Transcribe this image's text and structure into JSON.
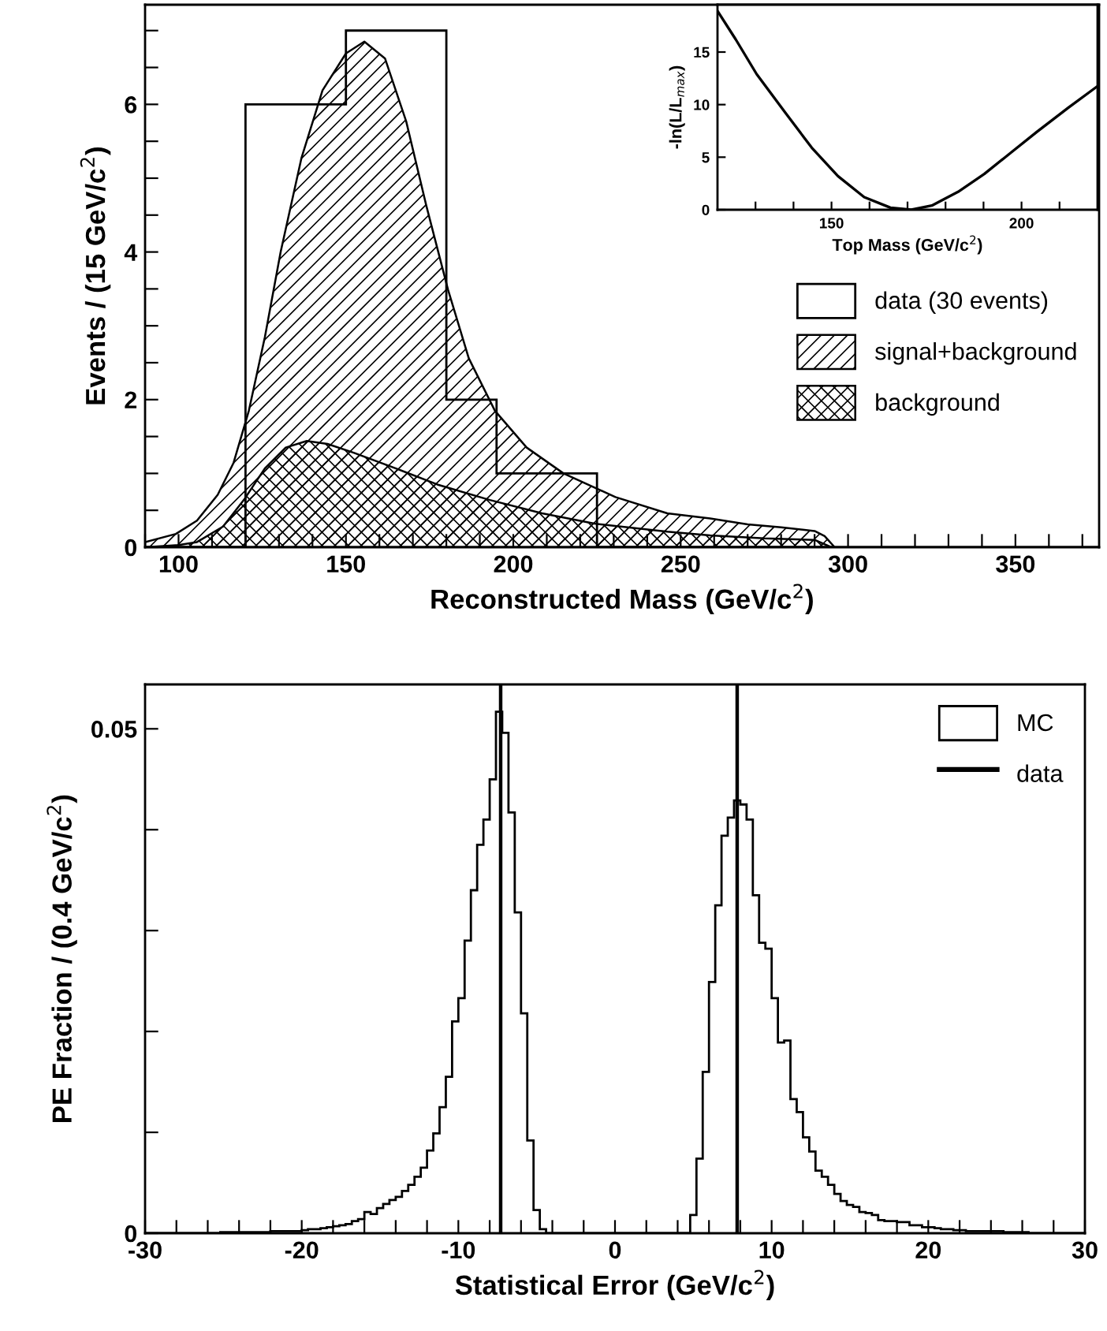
{
  "chart_data": [
    {
      "type": "histogram",
      "xlabel": "Reconstructed Mass (GeV/c$^{2}$)",
      "ylabel": "Events / (15 GeV/c$^{2}$)",
      "xlim": [
        90,
        375
      ],
      "ylim": [
        0,
        7.35
      ],
      "xticks": [
        {
          "value": 90,
          "label": null
        },
        100,
        {
          "value": 110,
          "label": null
        },
        {
          "value": 120,
          "label": null
        },
        {
          "value": 130,
          "label": null
        },
        {
          "value": 140,
          "label": null
        },
        150,
        {
          "value": 160,
          "label": null
        },
        {
          "value": 170,
          "label": null
        },
        {
          "value": 180,
          "label": null
        },
        {
          "value": 190,
          "label": null
        },
        200,
        {
          "value": 210,
          "label": null
        },
        {
          "value": 220,
          "label": null
        },
        {
          "value": 230,
          "label": null
        },
        {
          "value": 240,
          "label": null
        },
        250,
        {
          "value": 260,
          "label": null
        },
        {
          "value": 270,
          "label": null
        },
        {
          "value": 280,
          "label": null
        },
        {
          "value": 290,
          "label": null
        },
        300,
        {
          "value": 310,
          "label": null
        },
        {
          "value": 320,
          "label": null
        },
        {
          "value": 330,
          "label": null
        },
        {
          "value": 340,
          "label": null
        },
        350,
        {
          "value": 360,
          "label": null
        },
        {
          "value": 370,
          "label": null
        }
      ],
      "yticks": [
        0,
        {
          "value": 0.5,
          "label": null
        },
        {
          "value": 1,
          "label": null
        },
        {
          "value": 1.5,
          "label": null
        },
        2,
        {
          "value": 2.5,
          "label": null
        },
        {
          "value": 3,
          "label": null
        },
        {
          "value": 3.5,
          "label": null
        },
        4,
        {
          "value": 4.5,
          "label": null
        },
        {
          "value": 5,
          "label": null
        },
        {
          "value": 5.5,
          "label": null
        },
        6,
        {
          "value": 6.5,
          "label": null
        },
        {
          "value": 7,
          "label": null
        }
      ],
      "legend": "right",
      "grid": false,
      "series": [
        {
          "name": "data (30 events)",
          "type": "histogram",
          "color": "#000000",
          "bins": [
            90,
            105,
            120,
            135,
            150,
            165,
            180,
            195,
            210,
            225,
            240,
            255,
            270,
            285,
            300,
            315,
            330,
            345,
            360,
            375
          ],
          "values": [
            0,
            0,
            6,
            6,
            7,
            7,
            2,
            1,
            1,
            0,
            0,
            0,
            0,
            0,
            0,
            0,
            0,
            0,
            0
          ]
        },
        {
          "name": "signal+background",
          "type": "area",
          "color": "#000000",
          "x": [
            90,
            99.2,
            105.5,
            111.7,
            116.4,
            121,
            125.8,
            130.5,
            136.7,
            143,
            150,
            155.5,
            161.7,
            168,
            174,
            180.5,
            186.7,
            194.5,
            204,
            215,
            230.5,
            246,
            258.8,
            270,
            280,
            290,
            293,
            296
          ],
          "values": [
            0.07,
            0.18,
            0.36,
            0.71,
            1.14,
            1.85,
            2.85,
            4.0,
            5.27,
            6.19,
            6.69,
            6.85,
            6.62,
            5.77,
            4.63,
            3.49,
            2.56,
            1.85,
            1.35,
            1.0,
            0.68,
            0.46,
            0.39,
            0.31,
            0.27,
            0.22,
            0.15,
            0
          ]
        },
        {
          "name": "background",
          "type": "area",
          "color": "#000000",
          "x": [
            90,
            100,
            105.5,
            113.3,
            119.5,
            125.8,
            132,
            138.3,
            144.5,
            152.3,
            164.8,
            177.3,
            193,
            208.6,
            224.2,
            246,
            258.8,
            275,
            290,
            295
          ],
          "values": [
            0,
            0.03,
            0.07,
            0.28,
            0.64,
            1.07,
            1.35,
            1.44,
            1.4,
            1.28,
            1.07,
            0.85,
            0.64,
            0.46,
            0.32,
            0.21,
            0.16,
            0.12,
            0.1,
            0
          ]
        }
      ]
    },
    {
      "type": "line",
      "xlabel": "Top Mass (GeV/c$^{2}$)",
      "ylabel": "-ln(L/L$_{max}$)",
      "xlim": [
        120,
        220
      ],
      "ylim": [
        0,
        19.5
      ],
      "xticks": [
        {
          "value": 130,
          "label": null
        },
        {
          "value": 140,
          "label": null
        },
        150,
        {
          "value": 160,
          "label": null
        },
        {
          "value": 170,
          "label": null
        },
        {
          "value": 180,
          "label": null
        },
        {
          "value": 190,
          "label": null
        },
        200,
        {
          "value": 210,
          "label": null
        }
      ],
      "yticks": [
        0,
        5,
        10,
        15
      ],
      "grid": false,
      "series": [
        {
          "color": "#000000",
          "x": [
            120,
            124.8,
            130.3,
            137.9,
            144.8,
            151.7,
            158.6,
            165.5,
            171,
            176.4,
            183.3,
            190.2,
            197.1,
            204,
            212.3,
            219.8
          ],
          "values": [
            18.9,
            16.2,
            12.9,
            9.2,
            5.9,
            3.2,
            1.2,
            0.2,
            0,
            0.4,
            1.7,
            3.4,
            5.4,
            7.4,
            9.7,
            11.7
          ]
        }
      ]
    },
    {
      "type": "histogram",
      "xlabel": "Statistical Error (GeV/c$^{2}$)",
      "ylabel": "PE Fraction / (0.4 GeV/c$^{2}$)",
      "xlim": [
        -30,
        30
      ],
      "ylim": [
        0,
        0.0544
      ],
      "xticks": [
        -30,
        {
          "value": -28,
          "label": null
        },
        {
          "value": -26,
          "label": null
        },
        {
          "value": -24,
          "label": null
        },
        {
          "value": -22,
          "label": null
        },
        -20,
        {
          "value": -18,
          "label": null
        },
        {
          "value": -16,
          "label": null
        },
        {
          "value": -14,
          "label": null
        },
        {
          "value": -12,
          "label": null
        },
        -10,
        {
          "value": -8,
          "label": null
        },
        {
          "value": -6,
          "label": null
        },
        {
          "value": -4,
          "label": null
        },
        {
          "value": -2,
          "label": null
        },
        0,
        {
          "value": 2,
          "label": null
        },
        {
          "value": 4,
          "label": null
        },
        {
          "value": 6,
          "label": null
        },
        {
          "value": 8,
          "label": null
        },
        10,
        {
          "value": 12,
          "label": null
        },
        {
          "value": 14,
          "label": null
        },
        {
          "value": 16,
          "label": null
        },
        {
          "value": 18,
          "label": null
        },
        20,
        {
          "value": 22,
          "label": null
        },
        {
          "value": 24,
          "label": null
        },
        {
          "value": 26,
          "label": null
        },
        {
          "value": 28,
          "label": null
        },
        30
      ],
      "yticks": [
        0,
        {
          "value": 0.01,
          "label": null
        },
        {
          "value": 0.02,
          "label": null
        },
        {
          "value": 0.03,
          "label": null
        },
        {
          "value": 0.04,
          "label": null
        },
        0.05
      ],
      "legend": "top right",
      "grid": false,
      "ref_lines": [
        {
          "axis": "x",
          "value": -7.3,
          "color": "#000000"
        },
        {
          "axis": "x",
          "value": 7.8,
          "color": "#000000"
        }
      ],
      "annotations": [
        "data"
      ],
      "bins": [
        -30,
        -29.6,
        -29.2,
        -28.8,
        -28.4,
        -28,
        -27.6,
        -27.2,
        -26.8,
        -26.4,
        -26,
        -25.6,
        -25.2,
        -24.8,
        -24.4,
        -24,
        -23.6,
        -23.2,
        -22.8,
        -22.4,
        -22,
        -21.6,
        -21.2,
        -20.8,
        -20.4,
        -20,
        -19.6,
        -19.2,
        -18.8,
        -18.4,
        -18,
        -17.6,
        -17.2,
        -16.8,
        -16.4,
        -16,
        -15.6,
        -15.2,
        -14.8,
        -14.4,
        -14,
        -13.6,
        -13.2,
        -12.8,
        -12.4,
        -12,
        -11.6,
        -11.2,
        -10.8,
        -10.4,
        -10,
        -9.6,
        -9.2,
        -8.8,
        -8.4,
        -8,
        -7.6,
        -7.2,
        -6.8,
        -6.4,
        -6,
        -5.6,
        -5.2,
        -4.8,
        -4.4,
        -4,
        -3.6,
        -3.2,
        -2.8,
        -2.4,
        -2,
        -1.6,
        -1.2,
        -0.8,
        -0.4,
        0,
        0.4,
        0.8,
        1.2,
        1.6,
        2,
        2.4,
        2.8,
        3.2,
        3.6,
        4,
        4.4,
        4.8,
        5.2,
        5.6,
        6,
        6.4,
        6.8,
        7.2,
        7.6,
        8,
        8.4,
        8.8,
        9.2,
        9.6,
        10,
        10.4,
        10.8,
        11.2,
        11.6,
        12,
        12.4,
        12.8,
        13.2,
        13.6,
        14,
        14.4,
        14.8,
        15.2,
        15.6,
        16,
        16.4,
        16.8,
        17.2,
        17.6,
        18,
        18.4,
        18.8,
        19.2,
        19.6,
        20,
        20.4,
        20.8,
        21.2,
        21.6,
        22,
        22.4,
        22.8,
        23.2,
        23.6,
        24,
        24.4,
        24.8,
        25.2,
        25.6,
        26,
        26.4,
        26.8,
        27.2,
        27.6,
        28,
        28.4,
        28.8,
        29.2,
        29.6,
        30
      ],
      "series": [
        {
          "name": "MC",
          "type": "histogram",
          "color": "#000000",
          "values": [
            0,
            0,
            0,
            0,
            0,
            0,
            0,
            0,
            0,
            0,
            0,
            0,
            0.0001,
            0.0001,
            0.0001,
            0.0001,
            0.0001,
            0.0001,
            0.0001,
            0.0001,
            0.0002,
            0.0002,
            0.0002,
            0.0002,
            0.0002,
            0.0003,
            0.0004,
            0.0004,
            0.0005,
            0.0006,
            0.0007,
            0.0008,
            0.0009,
            0.0012,
            0.0014,
            0.0021,
            0.0019,
            0.0025,
            0.0029,
            0.0033,
            0.0036,
            0.0042,
            0.0048,
            0.0056,
            0.0065,
            0.0082,
            0.0099,
            0.0125,
            0.0155,
            0.021,
            0.0233,
            0.029,
            0.034,
            0.0385,
            0.041,
            0.045,
            0.0517,
            0.0496,
            0.0417,
            0.0318,
            0.0218,
            0.0092,
            0.0023,
            0.0004,
            0,
            0,
            0,
            0,
            0,
            0,
            0,
            0,
            0,
            0,
            0,
            0,
            0,
            0,
            0,
            0,
            0,
            0,
            0,
            0,
            0,
            0,
            0,
            0.0018,
            0.0074,
            0.016,
            0.0249,
            0.0325,
            0.0394,
            0.0412,
            0.0429,
            0.0425,
            0.041,
            0.0335,
            0.0288,
            0.0282,
            0.0233,
            0.0189,
            0.0191,
            0.0133,
            0.012,
            0.0095,
            0.0081,
            0.0062,
            0.0056,
            0.0048,
            0.0039,
            0.0032,
            0.0028,
            0.0026,
            0.0021,
            0.002,
            0.0018,
            0.0013,
            0.0012,
            0.0012,
            0.0011,
            0.0011,
            0.0008,
            0.0008,
            0.0006,
            0.0006,
            0.0005,
            0.0004,
            0.0004,
            0.0003,
            0.0003,
            0.0002,
            0.0002,
            0.0002,
            0.0002,
            0.0002,
            0.0002,
            0.0001,
            0.0001,
            0.0001,
            0.0001,
            0,
            0,
            0,
            0,
            0,
            0,
            0,
            0,
            0
          ]
        }
      ]
    }
  ]
}
